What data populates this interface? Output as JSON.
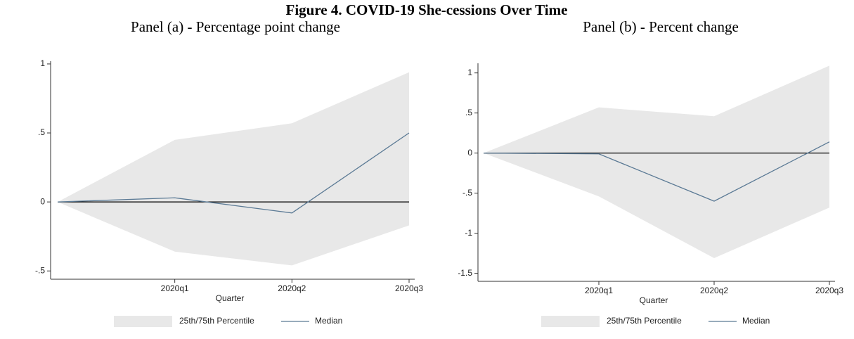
{
  "title": "Figure 4. COVID-19 She-cessions Over Time",
  "chart_data": [
    {
      "type": "line",
      "title": "Panel (a) - Percentage point change",
      "x_label": "Quarter",
      "categories": [
        null,
        "2020q1",
        "2020q2",
        "2020q3"
      ],
      "ylim": [
        -0.56,
        1.02
      ],
      "yticks": [
        {
          "value": -0.5,
          "label": "-.5"
        },
        0,
        {
          "value": 0.5,
          "label": ".5"
        },
        1
      ],
      "band": {
        "name": "25th/75th Percentile",
        "color": "#e8e8e8",
        "lower": [
          0,
          -0.36,
          -0.46,
          -0.17
        ],
        "upper": [
          0,
          0.45,
          0.57,
          0.94
        ]
      },
      "series": [
        {
          "name": "Median",
          "color": "#5b7a95",
          "values": [
            0,
            0.03,
            -0.08,
            0.5
          ]
        }
      ]
    },
    {
      "type": "line",
      "title": "Panel (b) - Percent change",
      "x_label": "Quarter",
      "categories": [
        null,
        "2020q1",
        "2020q2",
        "2020q3"
      ],
      "ylim": [
        -1.6,
        1.12
      ],
      "yticks": [
        {
          "value": -1.5,
          "label": "-1.5"
        },
        -1,
        {
          "value": -0.5,
          "label": "-.5"
        },
        0,
        {
          "value": 0.5,
          "label": ".5"
        },
        1
      ],
      "band": {
        "name": "25th/75th Percentile",
        "color": "#e8e8e8",
        "lower": [
          0,
          -0.54,
          -1.31,
          -0.68
        ],
        "upper": [
          0,
          0.57,
          0.46,
          1.09
        ]
      },
      "series": [
        {
          "name": "Median",
          "color": "#5b7a95",
          "values": [
            0,
            -0.01,
            -0.6,
            0.14
          ]
        }
      ]
    }
  ]
}
